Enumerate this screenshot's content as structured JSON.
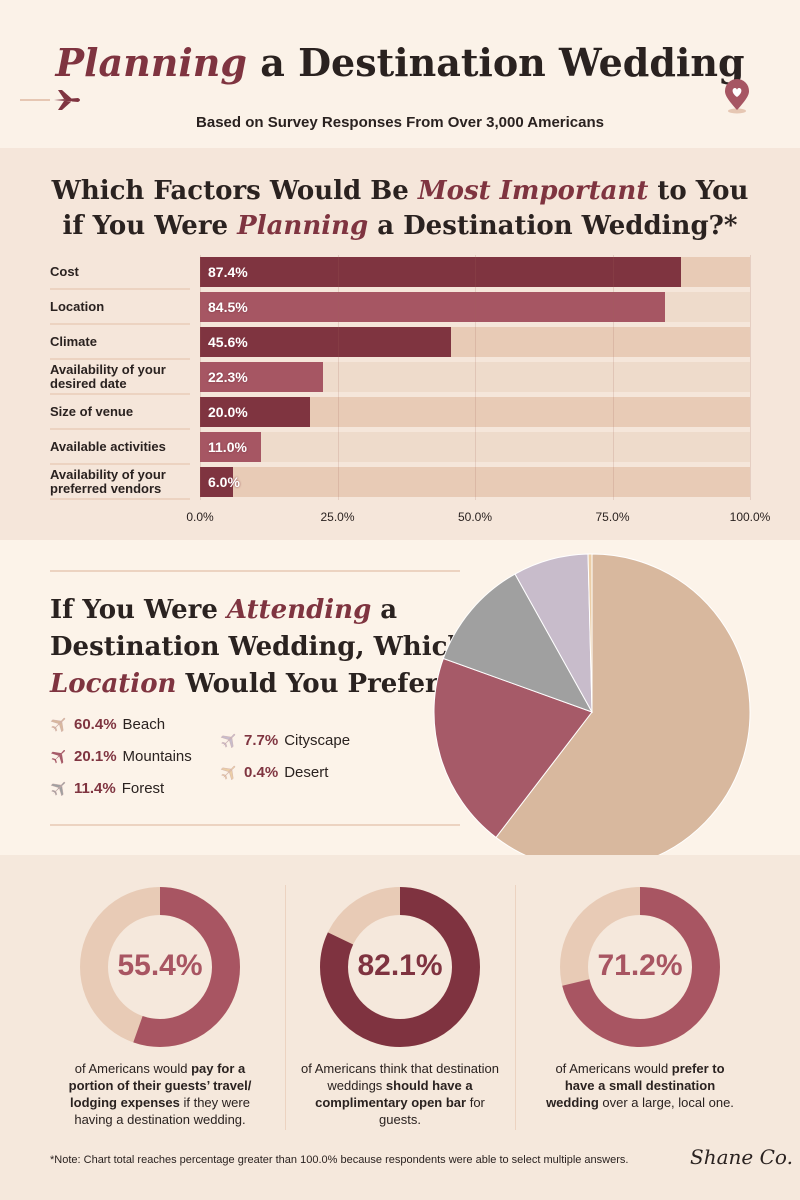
{
  "header": {
    "title_em": "Planning",
    "title_rest": " a Destination Wedding",
    "subtitle": "Based on Survey Responses From Over 3,000 Americans"
  },
  "factors": {
    "heading": [
      {
        "t": "Which Factors Would Be "
      },
      {
        "em": "Most Important"
      },
      {
        "t": " to You"
      },
      {
        "br": 1
      },
      {
        "t": "if You Were "
      },
      {
        "em": "Planning"
      },
      {
        "t": " a Destination Wedding?*"
      }
    ]
  },
  "location": {
    "heading": [
      {
        "t": "If You Were "
      },
      {
        "em": "Attending"
      },
      {
        "t": " a"
      },
      {
        "br": 1
      },
      {
        "t": "Destination Wedding, Which"
      },
      {
        "br": 1
      },
      {
        "em": "Location"
      },
      {
        "t": " Would You Prefer?"
      }
    ]
  },
  "stats": [
    {
      "value": 55.4,
      "label": "55.4%",
      "pre": "of Americans would ",
      "bold": "pay for a portion of their guests’ travel/ lodging expenses",
      "post": " if they were having a destination wedding.",
      "color": "#a85562"
    },
    {
      "value": 82.1,
      "label": "82.1%",
      "pre": "of Americans think that destination weddings ",
      "bold": "should have a complimentary open bar",
      "post": " for guests.",
      "color": "#7f3340"
    },
    {
      "value": 71.2,
      "label": "71.2%",
      "pre": "of Americans would ",
      "bold": "prefer to have a small destination wedding",
      "post": " over a large, local one.",
      "color": "#a85562"
    }
  ],
  "footer": {
    "note": "*Note: Chart total reaches percentage greater than 100.0% because respondents were able to select multiple answers.",
    "logo": "Shane Co."
  },
  "colors": {
    "dark": "#7f3440",
    "medium": "#a65663",
    "track": "#e8cbb6"
  },
  "chart_data": [
    {
      "type": "bar",
      "orientation": "horizontal",
      "categories": [
        "Cost",
        "Location",
        "Climate",
        "Availability of your desired date",
        "Size of venue",
        "Available activities",
        "Availability of your preferred vendors"
      ],
      "values": [
        87.4,
        84.5,
        45.6,
        22.3,
        20.0,
        11.0,
        6.0
      ],
      "labels": [
        "87.4%",
        "84.5%",
        "45.6%",
        "22.3%",
        "20.0%",
        "11.0%",
        "6.0%"
      ],
      "xlim": [
        0,
        100
      ],
      "ticks": [
        "0.0%",
        "25.0%",
        "50.0%",
        "75.0%",
        "100.0%"
      ],
      "grid": true
    },
    {
      "type": "pie",
      "categories": [
        "Beach",
        "Mountains",
        "Forest",
        "Cityscape",
        "Desert"
      ],
      "values": [
        60.4,
        20.1,
        11.4,
        7.7,
        0.4
      ],
      "labels": [
        "60.4%",
        "20.1%",
        "11.4%",
        "7.7%",
        "0.4%"
      ],
      "colors": [
        "#d8b89e",
        "#a65a68",
        "#a0a0a0",
        "#c8bccb",
        "#ebcda6"
      ],
      "legend": "left"
    }
  ]
}
